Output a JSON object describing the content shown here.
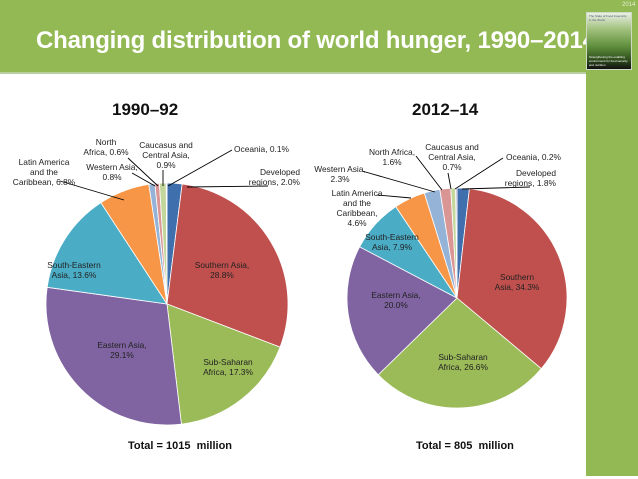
{
  "header": {
    "title": "Changing distribution of world hunger, 1990–2014",
    "year_tag": "2014",
    "report_cover": {
      "title": "The State of Food Insecurity in the World",
      "subtitle": "Strengthening the enabling environment for food security and nutrition"
    }
  },
  "colors": {
    "header_bg": "#93b955",
    "sidebar_bg": "#93b955"
  },
  "chart_data": [
    {
      "type": "pie",
      "title": "1990–92",
      "total_label": "Total = 1015  million",
      "unit": "%",
      "slices": [
        {
          "name": "Developed regions",
          "value": 2.0,
          "label": [
            "Developed",
            "regions, 2.0%"
          ],
          "color": "#3f6fac"
        },
        {
          "name": "Southern Asia",
          "value": 28.8,
          "label": [
            "Southern Asia,",
            "28.8%"
          ],
          "color": "#c0504d"
        },
        {
          "name": "Sub-Saharan Africa",
          "value": 17.3,
          "label": [
            "Sub-Saharan",
            "Africa, 17.3%"
          ],
          "color": "#9bbb59"
        },
        {
          "name": "Eastern Asia",
          "value": 29.1,
          "label": [
            "Eastern Asia,",
            "29.1%"
          ],
          "color": "#8064a2"
        },
        {
          "name": "South-Eastern Asia",
          "value": 13.6,
          "label": [
            "South-Eastern",
            "Asia, 13.6%"
          ],
          "color": "#4bacc6"
        },
        {
          "name": "Latin America and the Caribbean",
          "value": 6.8,
          "label": [
            "Latin America",
            "and the",
            "Caribbean, 6.8%"
          ],
          "color": "#f79646"
        },
        {
          "name": "Western Asia",
          "value": 0.8,
          "label": [
            "Western Asia,",
            "0.8%"
          ],
          "color": "#95b3d7"
        },
        {
          "name": "North Africa",
          "value": 0.6,
          "label": [
            "North",
            "Africa, 0.6%"
          ],
          "color": "#d99694"
        },
        {
          "name": "Caucasus and Central Asia",
          "value": 0.9,
          "label": [
            "Caucasus and",
            "Central Asia,",
            "0.9%"
          ],
          "color": "#c3d69b"
        },
        {
          "name": "Oceania",
          "value": 0.1,
          "label": [
            "Oceania, 0.1%"
          ],
          "color": "#b2a2c7"
        }
      ]
    },
    {
      "type": "pie",
      "title": "2012–14",
      "total_label": "Total = 805  million",
      "unit": "%",
      "slices": [
        {
          "name": "Developed regions",
          "value": 1.8,
          "label": [
            "Developed",
            "regions, 1.8%"
          ],
          "color": "#3f6fac"
        },
        {
          "name": "Southern Asia",
          "value": 34.3,
          "label": [
            "Southern",
            "Asia, 34.3%"
          ],
          "color": "#c0504d"
        },
        {
          "name": "Sub-Saharan Africa",
          "value": 26.6,
          "label": [
            "Sub-Saharan",
            "Africa, 26.6%"
          ],
          "color": "#9bbb59"
        },
        {
          "name": "Eastern Asia",
          "value": 20.0,
          "label": [
            "Eastern Asia,",
            "20.0%"
          ],
          "color": "#8064a2"
        },
        {
          "name": "South-Eastern Asia",
          "value": 7.9,
          "label": [
            "South-Eastern",
            "Asia, 7.9%"
          ],
          "color": "#4bacc6"
        },
        {
          "name": "Latin America and the Caribbean",
          "value": 4.6,
          "label": [
            "Latin America",
            "and the",
            "Caribbean,",
            "4.6%"
          ],
          "color": "#f79646"
        },
        {
          "name": "Western Asia",
          "value": 2.3,
          "label": [
            "Western Asia,",
            "2.3%"
          ],
          "color": "#95b3d7"
        },
        {
          "name": "North Africa",
          "value": 1.6,
          "label": [
            "North Africa,",
            "1.6%"
          ],
          "color": "#d99694"
        },
        {
          "name": "Caucasus and Central Asia",
          "value": 0.7,
          "label": [
            "Caucasus and",
            "Central Asia,",
            "0.7%"
          ],
          "color": "#c3d69b"
        },
        {
          "name": "Oceania",
          "value": 0.2,
          "label": [
            "Oceania, 0.2%"
          ],
          "color": "#b2a2c7"
        }
      ]
    }
  ]
}
